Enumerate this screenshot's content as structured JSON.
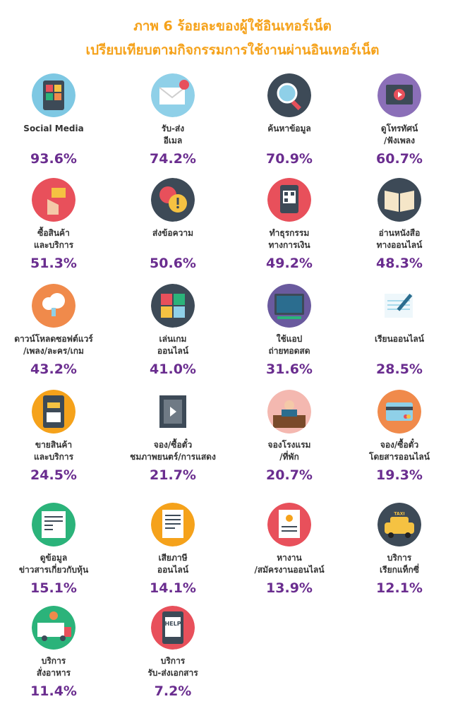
{
  "title_line1": "ภาพ 6 ร้อยละของผู้ใช้อินเทอร์เน็ต",
  "title_line2": "เปรียบเทียบตามกิจกรรมการใช้งานผ่านอินเทอร์เน็ต",
  "colors": {
    "title": "#f5a21b",
    "value": "#6a2d8f",
    "label": "#333333"
  },
  "chart_data": {
    "type": "table",
    "unit": "%",
    "items": [
      {
        "label": [
          "Social Media"
        ],
        "value": 93.6,
        "value_text": "93.6%",
        "icon": "social-media-icon",
        "icon_bg": "#7ec8e3"
      },
      {
        "label": [
          "รับ-ส่ง",
          "อีเมล"
        ],
        "value": 74.2,
        "value_text": "74.2%",
        "icon": "email-icon",
        "icon_bg": "#8fd0e8"
      },
      {
        "label": [
          "ค้นหาข้อมูล"
        ],
        "value": 70.9,
        "value_text": "70.9%",
        "icon": "search-icon",
        "icon_bg": "#3d4a57"
      },
      {
        "label": [
          "ดูโทรทัศน์",
          "/ฟังเพลง"
        ],
        "value": 60.7,
        "value_text": "60.7%",
        "icon": "video-player-icon",
        "icon_bg": "#8b6fb8"
      },
      {
        "label": [
          "ซื้อสินค้า",
          "และบริการ"
        ],
        "value": 51.3,
        "value_text": "51.3%",
        "icon": "shopping-cart-icon",
        "icon_bg": "#e8505b"
      },
      {
        "label": [
          "ส่งข้อความ"
        ],
        "value": 50.6,
        "value_text": "50.6%",
        "icon": "message-bubble-icon",
        "icon_bg": "#3d4a57"
      },
      {
        "label": [
          "ทำธุรกรรม",
          "ทางการเงิน"
        ],
        "value": 49.2,
        "value_text": "49.2%",
        "icon": "qr-payment-icon",
        "icon_bg": "#e8505b"
      },
      {
        "label": [
          "อ่านหนังสือ",
          "ทางออนไลน์"
        ],
        "value": 48.3,
        "value_text": "48.3%",
        "icon": "book-icon",
        "icon_bg": "#3d4a57"
      },
      {
        "label": [
          "ดาวน์โหลดซอฟต์แวร์",
          "/เพลง/ละคร/เกม"
        ],
        "value": 43.2,
        "value_text": "43.2%",
        "icon": "cloud-download-icon",
        "icon_bg": "#f08a4b"
      },
      {
        "label": [
          "เล่นเกม",
          "ออนไลน์"
        ],
        "value": 41.0,
        "value_text": "41.0%",
        "icon": "puzzle-icon",
        "icon_bg": "#3d4a57"
      },
      {
        "label": [
          "ใช้แอป",
          "ถ่ายทอดสด"
        ],
        "value": 31.6,
        "value_text": "31.6%",
        "icon": "live-stream-icon",
        "icon_bg": "#6a5a9e"
      },
      {
        "label": [
          "เรียนออนไลน์"
        ],
        "value": 28.5,
        "value_text": "28.5%",
        "icon": "notebook-pen-icon",
        "icon_bg": "#ffffff"
      },
      {
        "label": [
          "ขายสินค้า",
          "และบริการ"
        ],
        "value": 24.5,
        "value_text": "24.5%",
        "icon": "sell-basket-icon",
        "icon_bg": "#f5a21b"
      },
      {
        "label": [
          "จอง/ซื้อตั๋ว",
          "ชมภาพยนตร์/การแสดง"
        ],
        "value": 21.7,
        "value_text": "21.7%",
        "icon": "film-strip-icon",
        "icon_bg": "#ffffff"
      },
      {
        "label": [
          "จองโรงแรม",
          "/ที่พัก"
        ],
        "value": 20.7,
        "value_text": "20.7%",
        "icon": "hotel-reception-icon",
        "icon_bg": "#f4b8b0"
      },
      {
        "label": [
          "จอง/ซื้อตั๋ว",
          "โดยสารออนไลน์"
        ],
        "value": 19.3,
        "value_text": "19.3%",
        "icon": "credit-card-icon",
        "icon_bg": "#f08a4b"
      },
      {
        "label": [
          "ดูข้อมูล",
          "ข่าวสารเกี่ยวกับหุ้น"
        ],
        "value": 15.1,
        "value_text": "15.1%",
        "icon": "newspaper-icon",
        "icon_bg": "#2bb37a"
      },
      {
        "label": [
          "เสียภาษี",
          "ออนไลน์"
        ],
        "value": 14.1,
        "value_text": "14.1%",
        "icon": "tax-document-icon",
        "icon_bg": "#f5a21b"
      },
      {
        "label": [
          "หางาน",
          "/สมัครงานออนไลน์"
        ],
        "value": 13.9,
        "value_text": "13.9%",
        "icon": "resume-icon",
        "icon_bg": "#e8505b"
      },
      {
        "label": [
          "บริการ",
          "เรียกแท็กซี่"
        ],
        "value": 12.1,
        "value_text": "12.1%",
        "icon": "taxi-icon",
        "icon_bg": "#3d4a57",
        "icon_text": "TAXI"
      },
      {
        "label": [
          "บริการ",
          "สั่งอาหาร"
        ],
        "value": 11.4,
        "value_text": "11.4%",
        "icon": "food-truck-icon",
        "icon_bg": "#2bb37a"
      },
      {
        "label": [
          "บริการ",
          "รับ-ส่งเอกสาร"
        ],
        "value": 7.2,
        "value_text": "7.2%",
        "icon": "help-document-icon",
        "icon_bg": "#e8505b",
        "icon_text": "HELP"
      }
    ]
  }
}
